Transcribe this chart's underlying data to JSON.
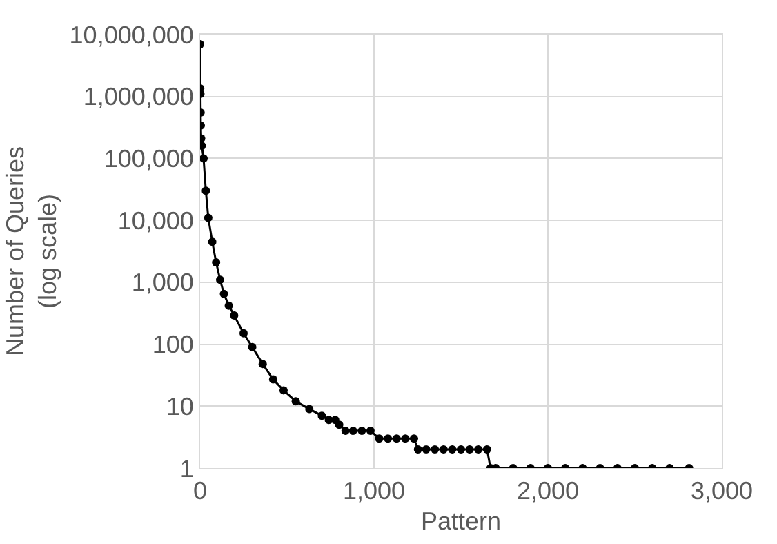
{
  "chart_data": {
    "type": "line",
    "xlabel": "Pattern",
    "ylabel": "Number of Queries\n(log scale)",
    "log": "y",
    "grid": true,
    "marker": "circle",
    "line_style": "solid",
    "x": [
      0,
      1,
      2,
      3,
      4,
      6,
      10,
      20,
      33,
      47,
      70,
      92,
      115,
      137,
      165,
      196,
      250,
      300,
      360,
      420,
      480,
      550,
      628,
      700,
      740,
      777,
      800,
      836,
      880,
      930,
      980,
      1030,
      1080,
      1130,
      1180,
      1230,
      1253,
      1300,
      1350,
      1400,
      1450,
      1500,
      1550,
      1600,
      1650,
      1670,
      1700,
      1800,
      1900,
      2000,
      2100,
      2200,
      2300,
      2400,
      2500,
      2600,
      2700,
      2812
    ],
    "series": [
      {
        "color": "#000000",
        "values": [
          7000000,
          1350000,
          1100000,
          550000,
          340000,
          210000,
          160000,
          100000,
          30000,
          11000,
          4500,
          2100,
          1100,
          650,
          420,
          290,
          150,
          90,
          48,
          27,
          18,
          12,
          9,
          7,
          6,
          6,
          5,
          4,
          4,
          4,
          4,
          3,
          3,
          3,
          3,
          3,
          2,
          2,
          2,
          2,
          2,
          2,
          2,
          2,
          2,
          1,
          1,
          1,
          1,
          1,
          1,
          1,
          1,
          1,
          1,
          1,
          1,
          1
        ]
      }
    ],
    "xlim": [
      0,
      3000
    ],
    "xticks": [
      0,
      {
        "value": 1000,
        "label": "1,000"
      },
      {
        "value": 2000,
        "label": "2,000"
      },
      {
        "value": 3000,
        "label": "3,000"
      }
    ],
    "ylim": [
      1,
      10000000
    ],
    "yticks": [
      1,
      10,
      100,
      {
        "value": 1000,
        "label": "1,000"
      },
      {
        "value": 10000,
        "label": "10,000"
      },
      {
        "value": 100000,
        "label": "100,000"
      },
      {
        "value": 1000000,
        "label": "1,000,000"
      },
      {
        "value": 10000000,
        "label": "10,000,000"
      }
    ]
  }
}
